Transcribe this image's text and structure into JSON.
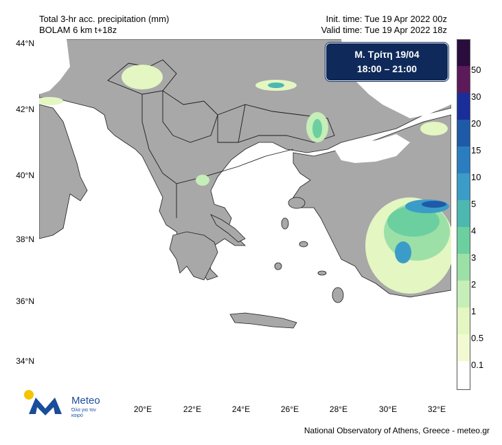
{
  "header": {
    "left_line1": "Total 3-hr acc. precipitation (mm)",
    "left_line2": "BOLAM 6 km t+18z",
    "right_line1": "Init. time: Tue 19 Apr 2022 00z",
    "right_line2": "Valid time: Tue 19 Apr 2022 18z"
  },
  "badge": {
    "line1": "Μ. Τρίτη 19/04",
    "line2": "18:00 – 21:00"
  },
  "axes": {
    "lat_labels": [
      "44°N",
      "42°N",
      "40°N",
      "38°N",
      "36°N",
      "34°N"
    ],
    "lon_labels": [
      "20°E",
      "22°E",
      "24°E",
      "26°E",
      "28°E",
      "30°E",
      "32°E"
    ],
    "lat_range": [
      33,
      44
    ],
    "lon_range": [
      16,
      32.5
    ]
  },
  "legend": {
    "labels": [
      "50",
      "30",
      "20",
      "15",
      "10",
      "5",
      "4",
      "3",
      "2",
      "1",
      "0.5",
      "0.1"
    ],
    "colors": {
      "top": "#2a0d3d",
      "c50": "#5c1a5a",
      "c30": "#1a2e9a",
      "c20": "#1e5aa8",
      "c15": "#2a7ec0",
      "c10": "#3c9cc8",
      "c5": "#4cb8b0",
      "c4": "#6ccfa0",
      "c3": "#9ce0a8",
      "c2": "#c6eeb8",
      "c1": "#e4f6c2",
      "c05": "#f2fad2",
      "c01": "#ffffff"
    }
  },
  "map_colors": {
    "land": "#a8a8a8",
    "sea": "#ffffff",
    "border": "#1a1a1a"
  },
  "logo": {
    "name": "Meteo",
    "tagline": "Όλα για τον καιρό"
  },
  "footer": "National Observatory of Athens, Greece - meteo.gr"
}
